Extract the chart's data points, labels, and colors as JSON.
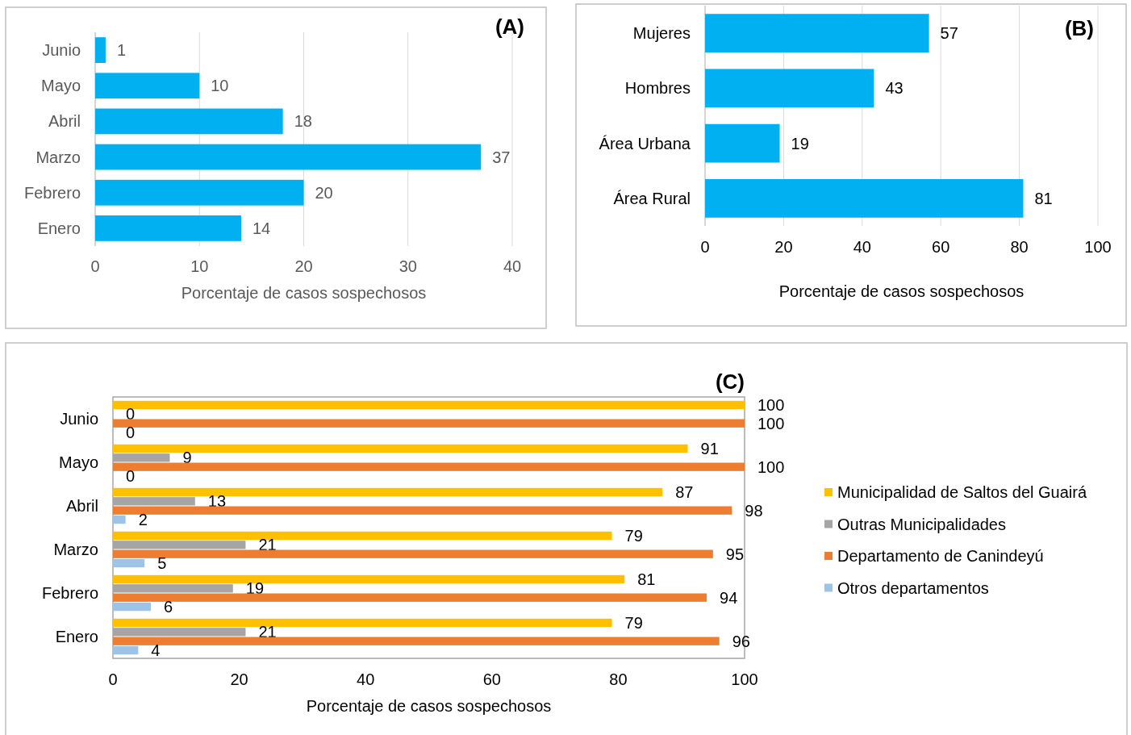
{
  "chart_data": [
    {
      "type": "bar",
      "orientation": "horizontal",
      "title": "(A)",
      "categories": [
        "Junio",
        "Mayo",
        "Abril",
        "Marzo",
        "Febrero",
        "Enero"
      ],
      "values": [
        1,
        10,
        18,
        37,
        20,
        14
      ],
      "color": "#00b0f0",
      "xlim": [
        0,
        40
      ],
      "xticks": [
        0,
        10,
        20,
        30,
        40
      ],
      "xlabel": "Porcentaje de casos sospechosos",
      "grid": "x",
      "data_labels": true
    },
    {
      "type": "bar",
      "orientation": "horizontal",
      "title": "(B)",
      "categories": [
        "Mujeres",
        "Hombres",
        "Área Urbana",
        "Área Rural"
      ],
      "values": [
        57,
        43,
        19,
        81
      ],
      "color": "#00b0f0",
      "xlim": [
        0,
        100
      ],
      "xticks": [
        0,
        20,
        40,
        60,
        80,
        100
      ],
      "xlabel": "Porcentaje de casos sospechosos",
      "grid": "x",
      "data_labels": true
    },
    {
      "type": "bar",
      "orientation": "horizontal",
      "title": "(C)",
      "categories": [
        "Junio",
        "Mayo",
        "Abril",
        "Marzo",
        "Febrero",
        "Enero"
      ],
      "series": [
        {
          "name": "Municipalidad de Saltos del Guairá",
          "color": "#ffc000",
          "values": [
            100,
            91,
            87,
            79,
            81,
            79
          ]
        },
        {
          "name": "Outras Municipalidades",
          "color": "#a5a5a5",
          "values": [
            0,
            9,
            13,
            21,
            19,
            21
          ]
        },
        {
          "name": "Departamento de Canindeyú",
          "color": "#ed7d31",
          "values": [
            100,
            100,
            98,
            95,
            94,
            96
          ]
        },
        {
          "name": "Otros departamentos",
          "color": "#9dc3e6",
          "values": [
            0,
            0,
            2,
            5,
            6,
            4
          ]
        }
      ],
      "xlim": [
        0,
        100
      ],
      "xticks": [
        0,
        20,
        40,
        60,
        80,
        100
      ],
      "xlabel": "Porcentaje de casos sospechosos",
      "legend": "right",
      "data_labels": true
    }
  ]
}
